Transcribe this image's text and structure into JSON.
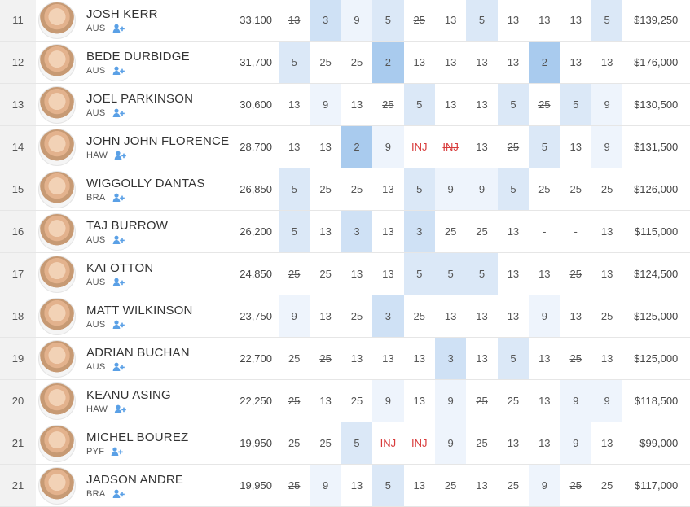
{
  "rows": [
    {
      "rank": "11",
      "name": "JOSH KERR",
      "country": "AUS",
      "points": "33,100",
      "prize": "$139,250",
      "results": [
        {
          "v": "13",
          "s": true,
          "b": 0
        },
        {
          "v": "3",
          "b": 3
        },
        {
          "v": "9",
          "b": 1
        },
        {
          "v": "5",
          "b": 2
        },
        {
          "v": "25",
          "s": true,
          "b": 0
        },
        {
          "v": "13",
          "b": 0
        },
        {
          "v": "5",
          "b": 2
        },
        {
          "v": "13",
          "b": 0
        },
        {
          "v": "13",
          "b": 0
        },
        {
          "v": "13",
          "b": 0
        },
        {
          "v": "5",
          "b": 2
        }
      ]
    },
    {
      "rank": "12",
      "name": "BEDE DURBIDGE",
      "country": "AUS",
      "points": "31,700",
      "prize": "$176,000",
      "results": [
        {
          "v": "5",
          "b": 2
        },
        {
          "v": "25",
          "s": true,
          "b": 0
        },
        {
          "v": "25",
          "s": true,
          "b": 0
        },
        {
          "v": "2",
          "b": 4
        },
        {
          "v": "13",
          "b": 0
        },
        {
          "v": "13",
          "b": 0
        },
        {
          "v": "13",
          "b": 0
        },
        {
          "v": "13",
          "b": 0
        },
        {
          "v": "2",
          "b": 4
        },
        {
          "v": "13",
          "b": 0
        },
        {
          "v": "13",
          "b": 0
        }
      ]
    },
    {
      "rank": "13",
      "name": "JOEL PARKINSON",
      "country": "AUS",
      "points": "30,600",
      "prize": "$130,500",
      "results": [
        {
          "v": "13",
          "b": 0
        },
        {
          "v": "9",
          "b": 1
        },
        {
          "v": "13",
          "b": 0
        },
        {
          "v": "25",
          "s": true,
          "b": 0
        },
        {
          "v": "5",
          "b": 2
        },
        {
          "v": "13",
          "b": 0
        },
        {
          "v": "13",
          "b": 0
        },
        {
          "v": "5",
          "b": 2
        },
        {
          "v": "25",
          "s": true,
          "b": 0
        },
        {
          "v": "5",
          "b": 2
        },
        {
          "v": "9",
          "b": 1
        }
      ]
    },
    {
      "rank": "14",
      "name": "JOHN JOHN FLORENCE",
      "country": "HAW",
      "points": "28,700",
      "prize": "$131,500",
      "results": [
        {
          "v": "13",
          "b": 0
        },
        {
          "v": "13",
          "b": 0
        },
        {
          "v": "2",
          "b": 4
        },
        {
          "v": "9",
          "b": 1
        },
        {
          "v": "INJ",
          "i": true,
          "b": 0
        },
        {
          "v": "INJ",
          "i": true,
          "s": true,
          "b": 0
        },
        {
          "v": "13",
          "b": 0
        },
        {
          "v": "25",
          "s": true,
          "b": 0
        },
        {
          "v": "5",
          "b": 2
        },
        {
          "v": "13",
          "b": 0
        },
        {
          "v": "9",
          "b": 1
        }
      ]
    },
    {
      "rank": "15",
      "name": "WIGGOLLY DANTAS",
      "country": "BRA",
      "points": "26,850",
      "prize": "$126,000",
      "results": [
        {
          "v": "5",
          "b": 2
        },
        {
          "v": "25",
          "b": 0
        },
        {
          "v": "25",
          "s": true,
          "b": 0
        },
        {
          "v": "13",
          "b": 0
        },
        {
          "v": "5",
          "b": 2
        },
        {
          "v": "9",
          "b": 1
        },
        {
          "v": "9",
          "b": 1
        },
        {
          "v": "5",
          "b": 2
        },
        {
          "v": "25",
          "b": 0
        },
        {
          "v": "25",
          "s": true,
          "b": 0
        },
        {
          "v": "25",
          "b": 0
        }
      ]
    },
    {
      "rank": "16",
      "name": "TAJ BURROW",
      "country": "AUS",
      "points": "26,200",
      "prize": "$115,000",
      "results": [
        {
          "v": "5",
          "b": 2
        },
        {
          "v": "13",
          "b": 0
        },
        {
          "v": "3",
          "b": 3
        },
        {
          "v": "13",
          "b": 0
        },
        {
          "v": "3",
          "b": 3
        },
        {
          "v": "25",
          "b": 0
        },
        {
          "v": "25",
          "b": 0
        },
        {
          "v": "13",
          "b": 0
        },
        {
          "v": "-",
          "b": 0
        },
        {
          "v": "-",
          "b": 0
        },
        {
          "v": "13",
          "b": 0
        }
      ]
    },
    {
      "rank": "17",
      "name": "KAI OTTON",
      "country": "AUS",
      "points": "24,850",
      "prize": "$124,500",
      "results": [
        {
          "v": "25",
          "s": true,
          "b": 0
        },
        {
          "v": "25",
          "b": 0
        },
        {
          "v": "13",
          "b": 0
        },
        {
          "v": "13",
          "b": 0
        },
        {
          "v": "5",
          "b": 2
        },
        {
          "v": "5",
          "b": 2
        },
        {
          "v": "5",
          "b": 2
        },
        {
          "v": "13",
          "b": 0
        },
        {
          "v": "13",
          "b": 0
        },
        {
          "v": "25",
          "s": true,
          "b": 0
        },
        {
          "v": "13",
          "b": 0
        }
      ]
    },
    {
      "rank": "18",
      "name": "MATT WILKINSON",
      "country": "AUS",
      "points": "23,750",
      "prize": "$125,000",
      "results": [
        {
          "v": "9",
          "b": 1
        },
        {
          "v": "13",
          "b": 0
        },
        {
          "v": "25",
          "b": 0
        },
        {
          "v": "3",
          "b": 3
        },
        {
          "v": "25",
          "s": true,
          "b": 0
        },
        {
          "v": "13",
          "b": 0
        },
        {
          "v": "13",
          "b": 0
        },
        {
          "v": "13",
          "b": 0
        },
        {
          "v": "9",
          "b": 1
        },
        {
          "v": "13",
          "b": 0
        },
        {
          "v": "25",
          "s": true,
          "b": 0
        }
      ]
    },
    {
      "rank": "19",
      "name": "ADRIAN BUCHAN",
      "country": "AUS",
      "points": "22,700",
      "prize": "$125,000",
      "results": [
        {
          "v": "25",
          "b": 0
        },
        {
          "v": "25",
          "s": true,
          "b": 0
        },
        {
          "v": "13",
          "b": 0
        },
        {
          "v": "13",
          "b": 0
        },
        {
          "v": "13",
          "b": 0
        },
        {
          "v": "3",
          "b": 3
        },
        {
          "v": "13",
          "b": 0
        },
        {
          "v": "5",
          "b": 2
        },
        {
          "v": "13",
          "b": 0
        },
        {
          "v": "25",
          "s": true,
          "b": 0
        },
        {
          "v": "13",
          "b": 0
        }
      ]
    },
    {
      "rank": "20",
      "name": "KEANU ASING",
      "country": "HAW",
      "points": "22,250",
      "prize": "$118,500",
      "results": [
        {
          "v": "25",
          "s": true,
          "b": 0
        },
        {
          "v": "13",
          "b": 0
        },
        {
          "v": "25",
          "b": 0
        },
        {
          "v": "9",
          "b": 1
        },
        {
          "v": "13",
          "b": 0
        },
        {
          "v": "9",
          "b": 1
        },
        {
          "v": "25",
          "s": true,
          "b": 0
        },
        {
          "v": "25",
          "b": 0
        },
        {
          "v": "13",
          "b": 0
        },
        {
          "v": "9",
          "b": 1
        },
        {
          "v": "9",
          "b": 1
        }
      ]
    },
    {
      "rank": "21",
      "name": "MICHEL BOUREZ",
      "country": "PYF",
      "points": "19,950",
      "prize": "$99,000",
      "results": [
        {
          "v": "25",
          "s": true,
          "b": 0
        },
        {
          "v": "25",
          "b": 0
        },
        {
          "v": "5",
          "b": 2
        },
        {
          "v": "INJ",
          "i": true,
          "b": 0
        },
        {
          "v": "INJ",
          "i": true,
          "s": true,
          "b": 0
        },
        {
          "v": "9",
          "b": 1
        },
        {
          "v": "25",
          "b": 0
        },
        {
          "v": "13",
          "b": 0
        },
        {
          "v": "13",
          "b": 0
        },
        {
          "v": "9",
          "b": 1
        },
        {
          "v": "13",
          "b": 0
        }
      ]
    },
    {
      "rank": "21",
      "name": "JADSON ANDRE",
      "country": "BRA",
      "points": "19,950",
      "prize": "$117,000",
      "results": [
        {
          "v": "25",
          "s": true,
          "b": 0
        },
        {
          "v": "9",
          "b": 1
        },
        {
          "v": "13",
          "b": 0
        },
        {
          "v": "5",
          "b": 2
        },
        {
          "v": "13",
          "b": 0
        },
        {
          "v": "25",
          "b": 0
        },
        {
          "v": "13",
          "b": 0
        },
        {
          "v": "25",
          "b": 0
        },
        {
          "v": "9",
          "b": 1
        },
        {
          "v": "25",
          "s": true,
          "b": 0
        },
        {
          "v": "25",
          "b": 0
        }
      ]
    }
  ]
}
